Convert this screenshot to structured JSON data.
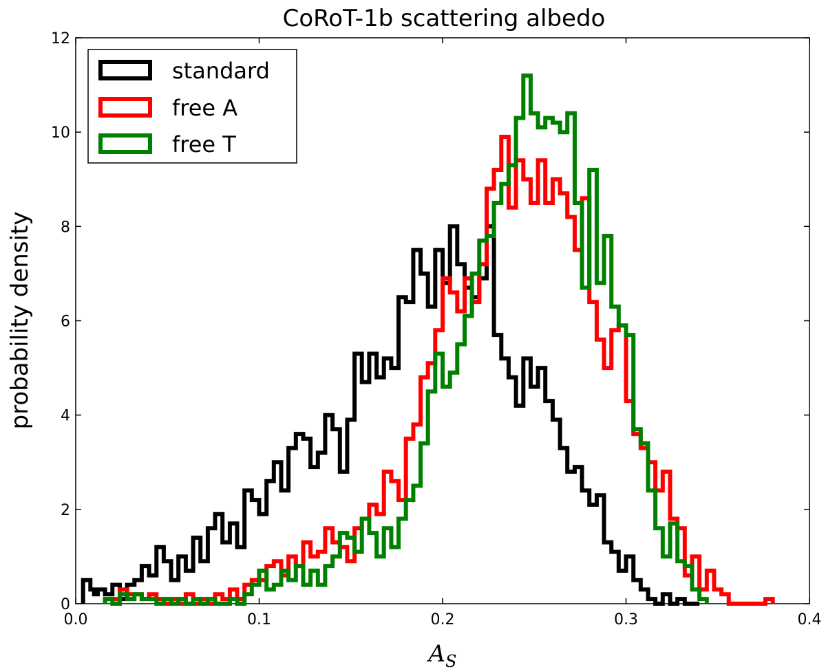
{
  "chart_data": {
    "type": "line",
    "title": "CoRoT-1b scattering albedo",
    "xlabel": "A",
    "xlabel_sub": "S",
    "ylabel": "probability density",
    "xlim": [
      0.0,
      0.4
    ],
    "ylim": [
      0,
      12
    ],
    "xticks": [
      0.0,
      0.1,
      0.2,
      0.3,
      0.4
    ],
    "xtick_labels": [
      "0.0",
      "0.1",
      "0.2",
      "0.3",
      "0.4"
    ],
    "yticks": [
      0,
      2,
      4,
      6,
      8,
      10,
      12
    ],
    "ytick_labels": [
      "0",
      "2",
      "4",
      "6",
      "8",
      "10",
      "12"
    ],
    "grid": false,
    "legend_position": "top-left",
    "series": [
      {
        "name": "standard",
        "color": "#000000",
        "x": [
          0.004,
          0.008,
          0.01,
          0.012,
          0.016,
          0.02,
          0.024,
          0.028,
          0.032,
          0.036,
          0.04,
          0.044,
          0.048,
          0.052,
          0.056,
          0.06,
          0.064,
          0.068,
          0.072,
          0.076,
          0.08,
          0.084,
          0.088,
          0.092,
          0.096,
          0.1,
          0.104,
          0.108,
          0.112,
          0.116,
          0.12,
          0.124,
          0.128,
          0.132,
          0.136,
          0.14,
          0.144,
          0.148,
          0.152,
          0.156,
          0.16,
          0.164,
          0.168,
          0.172,
          0.176,
          0.18,
          0.184,
          0.188,
          0.192,
          0.196,
          0.2,
          0.204,
          0.208,
          0.212,
          0.216,
          0.22,
          0.224,
          0.228,
          0.232,
          0.236,
          0.24,
          0.244,
          0.248,
          0.252,
          0.256,
          0.26,
          0.264,
          0.268,
          0.272,
          0.276,
          0.28,
          0.284,
          0.288,
          0.292,
          0.296,
          0.3,
          0.304,
          0.308,
          0.312,
          0.316,
          0.32,
          0.324,
          0.328,
          0.332,
          0.336
        ],
        "y": [
          0.5,
          0.3,
          0.2,
          0.3,
          0.2,
          0.4,
          0.1,
          0.4,
          0.5,
          0.8,
          0.6,
          1.2,
          0.9,
          0.5,
          1.0,
          0.7,
          1.4,
          0.9,
          1.6,
          1.9,
          1.3,
          1.7,
          1.2,
          2.4,
          2.2,
          1.9,
          2.6,
          3.0,
          2.4,
          3.3,
          3.6,
          3.5,
          2.9,
          3.2,
          4.0,
          3.7,
          2.8,
          3.9,
          5.3,
          4.7,
          5.3,
          4.8,
          5.2,
          5.0,
          6.5,
          6.4,
          7.5,
          7.0,
          6.3,
          7.5,
          6.8,
          8.0,
          7.2,
          6.7,
          6.5,
          6.9,
          8.0,
          5.7,
          5.2,
          4.8,
          4.2,
          5.2,
          4.6,
          5.0,
          4.3,
          3.9,
          3.3,
          2.8,
          2.9,
          2.4,
          2.1,
          2.3,
          1.3,
          1.1,
          0.7,
          1.0,
          0.5,
          0.3,
          0.1,
          0.0,
          0.2,
          0.0,
          0.1,
          0.0,
          0.0
        ]
      },
      {
        "name": "free A",
        "color": "#ff0000",
        "x": [
          0.016,
          0.024,
          0.028,
          0.036,
          0.04,
          0.044,
          0.048,
          0.052,
          0.056,
          0.06,
          0.064,
          0.068,
          0.072,
          0.076,
          0.08,
          0.084,
          0.088,
          0.092,
          0.096,
          0.1,
          0.104,
          0.108,
          0.112,
          0.116,
          0.12,
          0.124,
          0.128,
          0.132,
          0.136,
          0.14,
          0.144,
          0.148,
          0.152,
          0.156,
          0.16,
          0.164,
          0.168,
          0.172,
          0.176,
          0.18,
          0.184,
          0.188,
          0.192,
          0.196,
          0.2,
          0.204,
          0.208,
          0.212,
          0.216,
          0.22,
          0.224,
          0.228,
          0.232,
          0.236,
          0.24,
          0.244,
          0.248,
          0.252,
          0.256,
          0.26,
          0.264,
          0.268,
          0.272,
          0.276,
          0.28,
          0.284,
          0.288,
          0.292,
          0.296,
          0.3,
          0.304,
          0.308,
          0.312,
          0.316,
          0.32,
          0.324,
          0.328,
          0.332,
          0.336,
          0.34,
          0.344,
          0.348,
          0.352,
          0.356,
          0.36,
          0.364,
          0.368,
          0.372,
          0.376
        ],
        "y": [
          0.1,
          0.3,
          0.2,
          0.1,
          0.2,
          0.1,
          0.0,
          0.1,
          0.0,
          0.2,
          0.0,
          0.1,
          0.0,
          0.2,
          0.1,
          0.3,
          0.1,
          0.4,
          0.5,
          0.5,
          0.8,
          0.9,
          0.6,
          1.0,
          0.8,
          1.3,
          1.0,
          1.1,
          1.6,
          1.3,
          1.2,
          0.9,
          1.6,
          1.8,
          2.1,
          1.9,
          2.8,
          2.6,
          2.2,
          3.5,
          3.8,
          4.8,
          5.1,
          5.8,
          6.9,
          6.6,
          6.2,
          6.9,
          6.4,
          7.2,
          8.8,
          9.2,
          9.9,
          8.4,
          9.4,
          9.0,
          8.5,
          9.4,
          8.5,
          9.0,
          8.7,
          8.2,
          7.5,
          8.6,
          6.4,
          5.6,
          5.0,
          5.8,
          5.9,
          4.3,
          3.6,
          3.3,
          3.0,
          2.4,
          2.8,
          1.8,
          1.6,
          0.6,
          1.0,
          0.3,
          0.7,
          0.3,
          0.2,
          0.0,
          0.0,
          0.0,
          0.0,
          0.0,
          0.1
        ]
      },
      {
        "name": "free T",
        "color": "#008000",
        "x": [
          0.016,
          0.02,
          0.024,
          0.028,
          0.032,
          0.036,
          0.04,
          0.044,
          0.048,
          0.052,
          0.056,
          0.06,
          0.064,
          0.068,
          0.072,
          0.076,
          0.08,
          0.084,
          0.088,
          0.092,
          0.096,
          0.1,
          0.104,
          0.108,
          0.112,
          0.116,
          0.12,
          0.124,
          0.128,
          0.132,
          0.136,
          0.14,
          0.144,
          0.148,
          0.152,
          0.156,
          0.16,
          0.164,
          0.168,
          0.172,
          0.176,
          0.18,
          0.184,
          0.188,
          0.192,
          0.196,
          0.2,
          0.204,
          0.208,
          0.212,
          0.216,
          0.22,
          0.224,
          0.228,
          0.232,
          0.236,
          0.24,
          0.244,
          0.248,
          0.252,
          0.256,
          0.26,
          0.264,
          0.268,
          0.272,
          0.276,
          0.28,
          0.284,
          0.288,
          0.292,
          0.296,
          0.3,
          0.304,
          0.308,
          0.312,
          0.316,
          0.32,
          0.324,
          0.328,
          0.332,
          0.336,
          0.34
        ],
        "y": [
          0.1,
          0.0,
          0.2,
          0.1,
          0.2,
          0.1,
          0.1,
          0.0,
          0.1,
          0.0,
          0.1,
          0.0,
          0.1,
          0.0,
          0.1,
          0.0,
          0.0,
          0.1,
          0.0,
          0.2,
          0.4,
          0.7,
          0.3,
          0.4,
          0.7,
          0.5,
          0.8,
          0.4,
          0.7,
          0.4,
          0.8,
          1.0,
          1.5,
          1.4,
          1.1,
          1.8,
          1.5,
          1.0,
          1.6,
          1.2,
          1.8,
          2.2,
          2.5,
          3.4,
          4.5,
          5.3,
          4.6,
          4.9,
          5.5,
          6.1,
          7.0,
          7.7,
          7.8,
          8.5,
          8.9,
          9.3,
          10.3,
          11.2,
          10.4,
          10.1,
          10.3,
          10.2,
          10.0,
          10.4,
          8.5,
          6.7,
          9.2,
          6.8,
          7.8,
          6.3,
          5.9,
          5.7,
          3.7,
          3.4,
          2.4,
          1.6,
          1.0,
          1.7,
          0.9,
          0.8,
          0.3,
          0.1
        ]
      }
    ]
  }
}
